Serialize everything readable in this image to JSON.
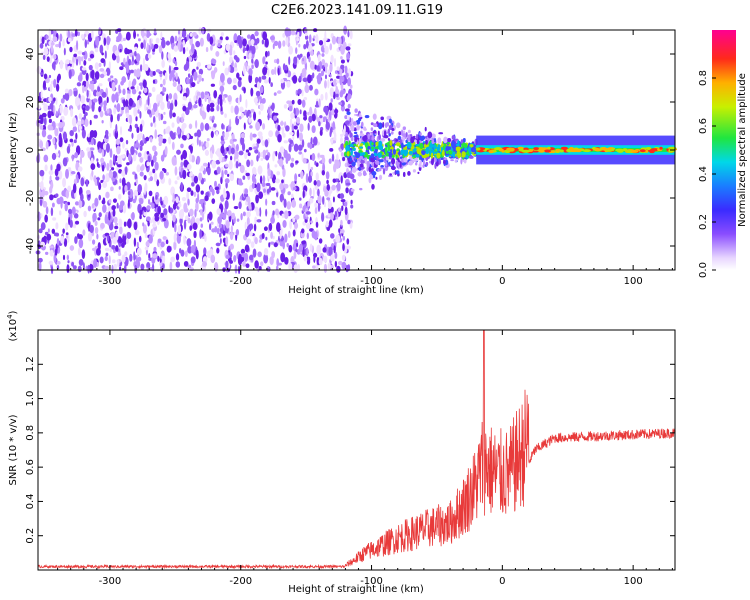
{
  "title": "C2E6.2023.141.09.11.G19",
  "colors": {
    "snr_line": "#e83a3a",
    "scatter_palette": [
      "#f0e0ff",
      "#d8b8ff",
      "#b98cff",
      "#8f55f4",
      "#6a1fe6",
      "#3a4bff",
      "#00b7e8",
      "#28e63a",
      "#b8e600",
      "#ffb000",
      "#ff2a1a",
      "#ff00a0"
    ]
  },
  "chart_data": [
    {
      "type": "heatmap",
      "xlabel": "Height of straight line (km)",
      "ylabel": "Frequency (Hz)",
      "xlim": [
        -355,
        132
      ],
      "ylim": [
        -50,
        50
      ],
      "x_ticks": [
        -300,
        -200,
        -100,
        0,
        100
      ],
      "y_ticks": [
        -40,
        -20,
        0,
        20,
        40
      ],
      "colorbar": {
        "label": "Normalized spectral amplitude",
        "range": [
          0,
          1
        ],
        "ticks": [
          "0.0",
          "0.2",
          "0.4",
          "0.6",
          "0.8"
        ]
      },
      "regions": [
        {
          "x_from": -355,
          "x_to": -120,
          "freq_half_width": 50,
          "amplitude": "0.0-0.15"
        },
        {
          "x_from": -120,
          "x_to": -20,
          "freq_half_width": 12,
          "amplitude": "0.1-0.7"
        },
        {
          "x_from": -20,
          "x_to": 132,
          "freq_half_width": 3,
          "amplitude": "0.3-0.95"
        }
      ]
    },
    {
      "type": "line",
      "xlabel": "Height of straight line (km)",
      "ylabel": "SNR (10 * v/v)",
      "y_multiplier": "(x10",
      "y_multiplier_exp": "4",
      "y_multiplier_close": ")",
      "xlim": [
        -355,
        132
      ],
      "ylim": [
        0,
        1.4
      ],
      "x_ticks": [
        -300,
        -200,
        -100,
        0,
        100
      ],
      "y_ticks": [
        "0.2",
        "0.4",
        "0.6",
        "0.8",
        "1.0",
        "1.2"
      ],
      "series_profile": [
        {
          "x": -355,
          "y": 0.02
        },
        {
          "x": -120,
          "y": 0.02
        },
        {
          "x": -105,
          "y": 0.08
        },
        {
          "x": -80,
          "y": 0.15
        },
        {
          "x": -55,
          "y": 0.2
        },
        {
          "x": -40,
          "y": 0.22
        },
        {
          "x": -30,
          "y": 0.3
        },
        {
          "x": -20,
          "y": 0.4
        },
        {
          "x": -15,
          "y": 0.5
        },
        {
          "x": -5,
          "y": 0.45
        },
        {
          "x": 5,
          "y": 0.45
        },
        {
          "x": 15,
          "y": 0.55
        },
        {
          "x": 25,
          "y": 0.7
        },
        {
          "x": 40,
          "y": 0.77
        },
        {
          "x": 132,
          "y": 0.8
        }
      ],
      "peak": {
        "x": -14,
        "y": 1.4
      }
    }
  ]
}
